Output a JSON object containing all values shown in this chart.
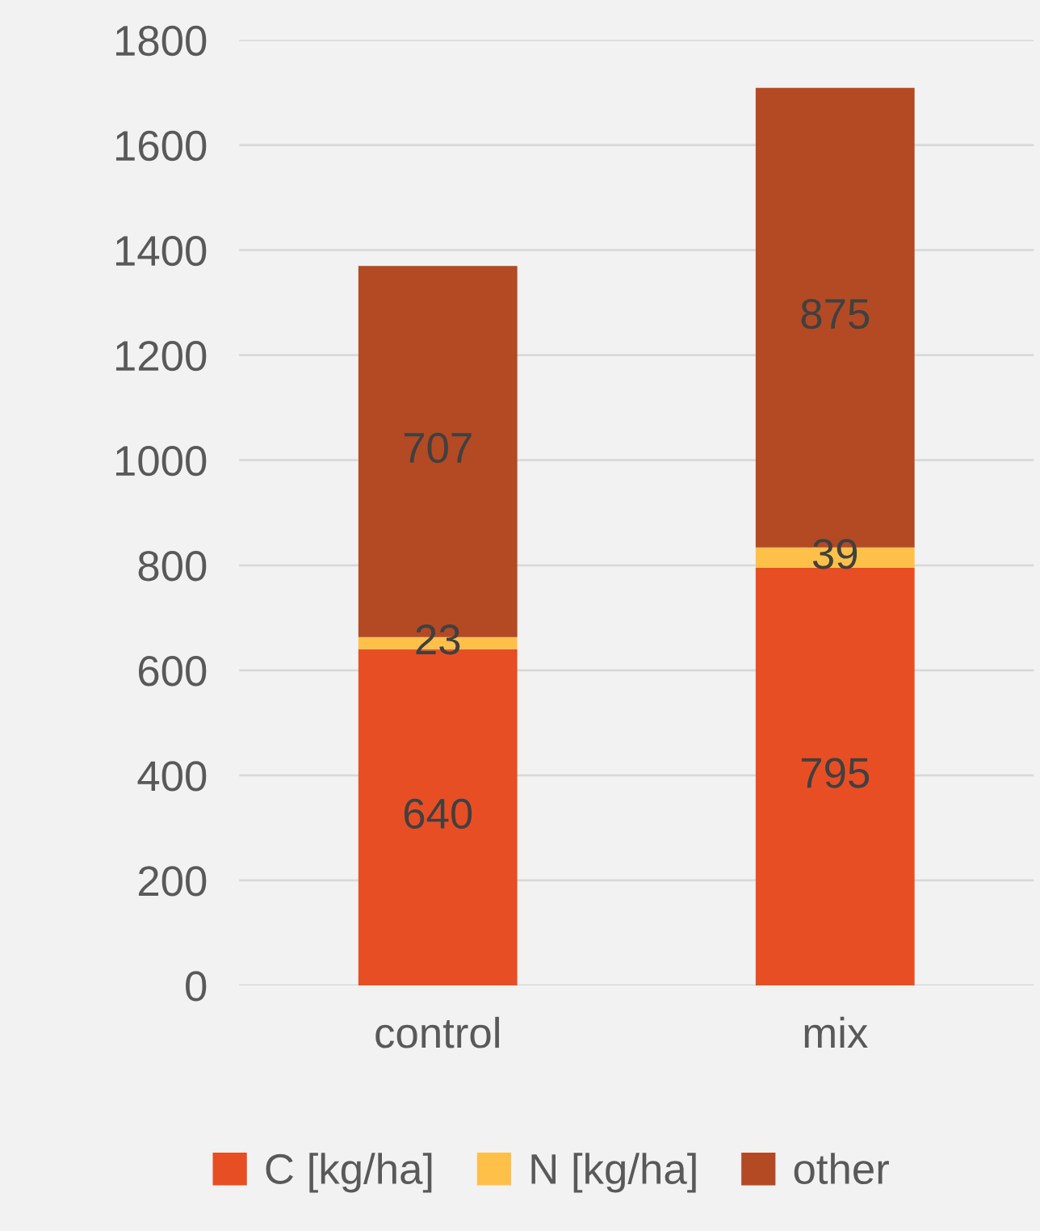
{
  "chart_data": {
    "type": "bar",
    "stacked": true,
    "categories": [
      "control",
      "mix"
    ],
    "series": [
      {
        "name": "C [kg/ha]",
        "color": "#e84e23",
        "values": [
          640,
          795
        ]
      },
      {
        "name": "N [kg/ha]",
        "color": "#ffc04a",
        "values": [
          23,
          39
        ]
      },
      {
        "name": "other",
        "color": "#b34a24",
        "values": [
          707,
          875
        ]
      }
    ],
    "ylim": [
      0,
      1800
    ],
    "yticks": [
      0,
      200,
      400,
      600,
      800,
      1000,
      1200,
      1400,
      1600,
      1800
    ],
    "grid": "y",
    "legend": "bottom",
    "data_labels": true
  }
}
